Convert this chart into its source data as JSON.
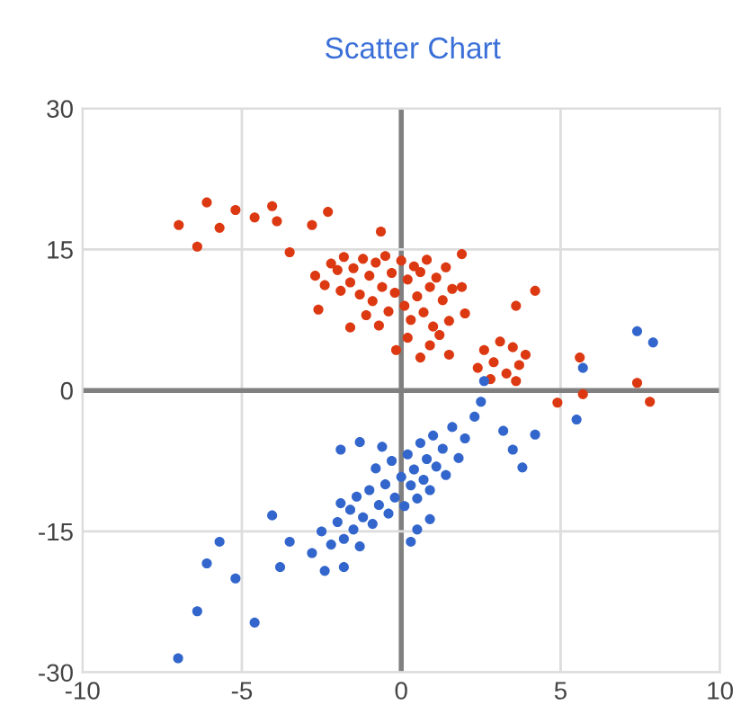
{
  "chart_data": {
    "type": "scatter",
    "title": "Scatter Chart",
    "series": [
      {
        "color": "#dc3912",
        "x": [
          -6.98,
          -6.4,
          -6.1,
          -5.7,
          -5.2,
          -4.6,
          -4.05,
          -3.9,
          -3.5,
          -2.8,
          -2.3,
          -2.7,
          -2.6,
          -1.6,
          -0.64,
          -0.16,
          0.6,
          1.9,
          1.9,
          2.0,
          1.2,
          3.6,
          4.2,
          4.9,
          5.6,
          5.7,
          7.4,
          7.8,
          -2.2,
          -2.0,
          -1.8,
          -1.6,
          -1.5,
          -1.3,
          -1.2,
          -1.0,
          -0.9,
          -0.8,
          -0.6,
          -0.5,
          -0.4,
          -0.3,
          -0.2,
          0.0,
          0.1,
          0.2,
          0.3,
          0.4,
          0.5,
          0.6,
          0.7,
          0.8,
          0.9,
          1.0,
          1.1,
          1.3,
          1.4,
          1.5,
          1.6,
          -1.9,
          -2.4,
          -1.1,
          0.2,
          0.9,
          1.5,
          -0.7,
          2.4,
          2.6,
          2.9,
          3.1,
          3.3,
          3.5,
          3.7,
          3.9,
          2.8,
          3.6
        ],
        "values": [
          17.6,
          15.3,
          20,
          17.3,
          19.2,
          18.4,
          19.6,
          18,
          14.7,
          17.6,
          19,
          12.2,
          8.6,
          6.7,
          16.9,
          4.3,
          3.5,
          14.5,
          11,
          8.2,
          5.9,
          9,
          10.6,
          -1.3,
          3.5,
          -0.4,
          0.8,
          -1.2,
          13.5,
          12.8,
          14.2,
          11.5,
          13.0,
          10.2,
          14.0,
          12.2,
          9.5,
          13.6,
          11.0,
          14.3,
          8.4,
          12.5,
          10.4,
          13.8,
          9.0,
          11.8,
          7.5,
          13.2,
          10.0,
          12.6,
          8.3,
          13.9,
          11.0,
          6.8,
          12.0,
          9.6,
          13.1,
          7.4,
          10.8,
          10.6,
          11.2,
          8.0,
          5.6,
          4.8,
          3.8,
          6.9,
          2.4,
          4.3,
          3.0,
          5.2,
          1.8,
          4.6,
          2.7,
          3.8,
          1.2,
          1.0
        ]
      },
      {
        "color": "#3366cc",
        "x": [
          -7,
          -6.4,
          -6.1,
          -5.7,
          -5.2,
          -4.6,
          -4.05,
          -3.8,
          -3.5,
          -2.8,
          -2.4,
          -1.8,
          -1.9,
          -1.3,
          0.3,
          0.9,
          2.5,
          2.6,
          3.2,
          3.5,
          3.8,
          4.2,
          5.5,
          5.7,
          7.4,
          7.9,
          -2.5,
          -2.2,
          -2.0,
          -1.8,
          -1.6,
          -1.5,
          -1.4,
          -1.3,
          -1.2,
          -1.0,
          -0.9,
          -0.8,
          -0.7,
          -0.5,
          -0.4,
          -0.3,
          -0.2,
          0.0,
          0.1,
          0.2,
          0.3,
          0.4,
          0.5,
          0.6,
          0.7,
          0.8,
          0.9,
          1.0,
          1.1,
          1.3,
          1.4,
          1.6,
          1.8,
          2.0,
          -0.6,
          0.5,
          -1.9,
          2.3
        ],
        "values": [
          -28.5,
          -23.5,
          -18.4,
          -16.1,
          -20,
          -24.7,
          -13.3,
          -18.8,
          -16.1,
          -17.3,
          -19.2,
          -18.8,
          -6.3,
          -5.5,
          -16.1,
          -13.7,
          -1.2,
          1,
          -4.3,
          -6.3,
          -8.2,
          -4.7,
          -3.1,
          2.4,
          6.3,
          5.1,
          -15.0,
          -16.4,
          -14.0,
          -15.8,
          -12.7,
          -14.8,
          -11.3,
          -16.6,
          -13.5,
          -10.6,
          -14.2,
          -8.3,
          -12.2,
          -10.0,
          -13.1,
          -7.5,
          -11.4,
          -9.2,
          -12.3,
          -6.8,
          -10.1,
          -8.4,
          -11.5,
          -5.6,
          -9.5,
          -7.3,
          -10.6,
          -4.8,
          -8.1,
          -6.2,
          -9.0,
          -3.9,
          -7.2,
          -5.1,
          -6.0,
          -14.8,
          -12.0,
          -2.8
        ]
      }
    ],
    "xlim": [
      -10,
      10
    ],
    "xticks": [
      -10,
      -5,
      0,
      5,
      10
    ],
    "ylim": [
      -30,
      30
    ],
    "yticks": [
      -30,
      -15,
      0,
      15,
      30
    ],
    "grid": true,
    "marker": "circle"
  }
}
